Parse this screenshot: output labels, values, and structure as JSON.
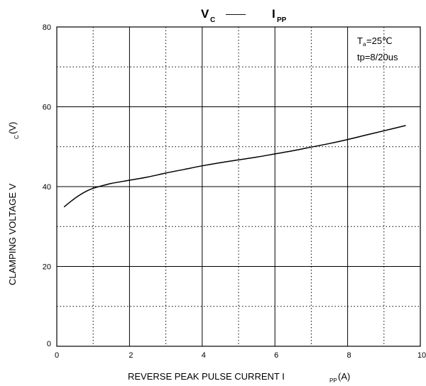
{
  "chart_data": {
    "type": "line",
    "title": {
      "v": "V",
      "v_sub": "C",
      "dash": "——",
      "i": "I",
      "i_sub": "PP"
    },
    "xlabel": {
      "main": "REVERSE PEAK PULSE CURRENT  I",
      "sub": "PP",
      "unit": "(A)"
    },
    "ylabel": {
      "main": "CLAMPING VOLTAGE  V",
      "sub": "C",
      "unit": "(V)"
    },
    "xlim": [
      0,
      10
    ],
    "ylim": [
      0,
      80
    ],
    "x_ticks": [
      0,
      2,
      4,
      6,
      8,
      10
    ],
    "y_ticks": [
      0,
      20,
      40,
      60,
      80
    ],
    "x_tick_labels": [
      "0",
      "2",
      "4",
      "6",
      "8",
      "10"
    ],
    "y_tick_labels": [
      "0",
      "20",
      "40",
      "60",
      "80"
    ],
    "grid": {
      "major_solid": true,
      "minor_dotted": true
    },
    "annotation": {
      "line1_main": "T",
      "line1_sub": "a",
      "line1_rest": "=25℃",
      "line2": "tp=8/20us"
    },
    "series": [
      {
        "x": [
          0.2,
          0.4,
          0.6,
          0.8,
          1.0,
          1.2,
          1.5,
          2.0,
          2.5,
          3.0,
          3.5,
          4.0,
          4.5,
          5.0,
          5.5,
          6.0,
          6.5,
          7.0,
          7.5,
          8.0,
          8.5,
          9.0,
          9.6
        ],
        "y": [
          34.9,
          36.4,
          37.7,
          38.8,
          39.6,
          40.1,
          40.8,
          41.6,
          42.4,
          43.4,
          44.3,
          45.2,
          46.0,
          46.7,
          47.4,
          48.2,
          49.0,
          49.9,
          50.8,
          51.8,
          52.9,
          54.0,
          55.3
        ]
      }
    ]
  }
}
